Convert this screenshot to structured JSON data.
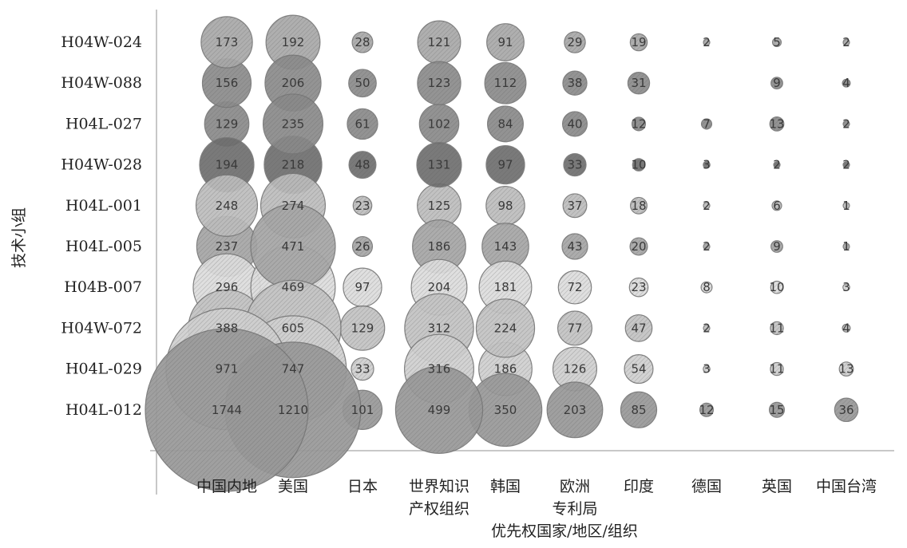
{
  "chart_data": {
    "type": "bubble",
    "xlabel": "优先权国家/地区/组织",
    "ylabel": "技术小组",
    "columns": [
      [
        "中国内地"
      ],
      [
        "美国"
      ],
      [
        "日本"
      ],
      [
        "世界知识",
        "产权组织"
      ],
      [
        "韩国"
      ],
      [
        "欧洲",
        "专利局"
      ],
      [
        "印度"
      ],
      [
        "德国"
      ],
      [
        "英国"
      ],
      [
        "中国台湾"
      ]
    ],
    "rows": [
      {
        "name": "H04W-024",
        "values": [
          173,
          192,
          28,
          121,
          91,
          29,
          19,
          2,
          5,
          2
        ],
        "shade": "#a9a9a9"
      },
      {
        "name": "H04W-088",
        "values": [
          156,
          206,
          50,
          123,
          112,
          38,
          31,
          null,
          9,
          4
        ],
        "shade": "#8c8c8c"
      },
      {
        "name": "H04L-027",
        "values": [
          129,
          235,
          61,
          102,
          84,
          40,
          12,
          7,
          13,
          2
        ],
        "shade": "#8a8a8a"
      },
      {
        "name": "H04W-028",
        "values": [
          194,
          218,
          48,
          131,
          97,
          33,
          10,
          3,
          2,
          2
        ],
        "shade": "#6f6f6f"
      },
      {
        "name": "H04L-001",
        "values": [
          248,
          274,
          23,
          125,
          98,
          37,
          18,
          2,
          6,
          1
        ],
        "shade": "#bdbdbd"
      },
      {
        "name": "H04L-005",
        "values": [
          237,
          471,
          26,
          186,
          143,
          43,
          20,
          2,
          9,
          1
        ],
        "shade": "#a6a6a6"
      },
      {
        "name": "H04B-007",
        "values": [
          296,
          469,
          97,
          204,
          181,
          72,
          23,
          8,
          10,
          3
        ],
        "shade": "#dddddd"
      },
      {
        "name": "H04W-072",
        "values": [
          388,
          605,
          129,
          312,
          224,
          77,
          47,
          2,
          11,
          4
        ],
        "shade": "#c3c3c3"
      },
      {
        "name": "H04L-029",
        "values": [
          971,
          747,
          33,
          316,
          186,
          126,
          54,
          3,
          11,
          13
        ],
        "shade": "#d0d0d0"
      },
      {
        "name": "H04L-012",
        "values": [
          1744,
          1210,
          101,
          499,
          350,
          203,
          85,
          12,
          15,
          36
        ],
        "shade": "#999999"
      }
    ]
  }
}
